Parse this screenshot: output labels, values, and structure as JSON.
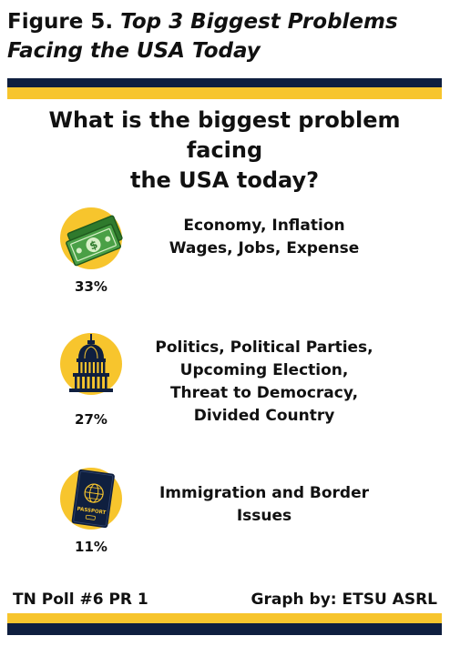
{
  "figure": {
    "label": "Figure 5.",
    "title_line1": "Top 3 Biggest Problems",
    "title_line2": "Facing the USA Today"
  },
  "question": {
    "line1": "What is the biggest problem facing",
    "line2": "the USA today?"
  },
  "chart_data": {
    "type": "table",
    "title": "Top 3 Biggest Problems Facing the USA Today",
    "subtitle": "What is the biggest problem facing the USA today?",
    "unit": "%",
    "items": [
      {
        "lines": [
          "Economy, Inflation",
          "Wages, Jobs, Expense"
        ],
        "value": 33,
        "label": "33%",
        "icon": "money-icon"
      },
      {
        "lines": [
          "Politics, Political Parties,",
          "Upcoming Election,",
          "Threat to Democracy,",
          "Divided Country"
        ],
        "value": 27,
        "label": "27%",
        "icon": "capitol-icon"
      },
      {
        "lines": [
          "Immigration and Border",
          "Issues"
        ],
        "value": 11,
        "label": "11%",
        "icon": "passport-icon"
      }
    ]
  },
  "icons": {
    "passport_text": "PASSPORT"
  },
  "footer": {
    "left": "TN Poll #6 PR 1",
    "right": "Graph by: ETSU ASRL"
  },
  "colors": {
    "navy": "#0f1f3f",
    "gold": "#f7c52d",
    "money_green": "#3c8c3a",
    "text": "#111111"
  }
}
